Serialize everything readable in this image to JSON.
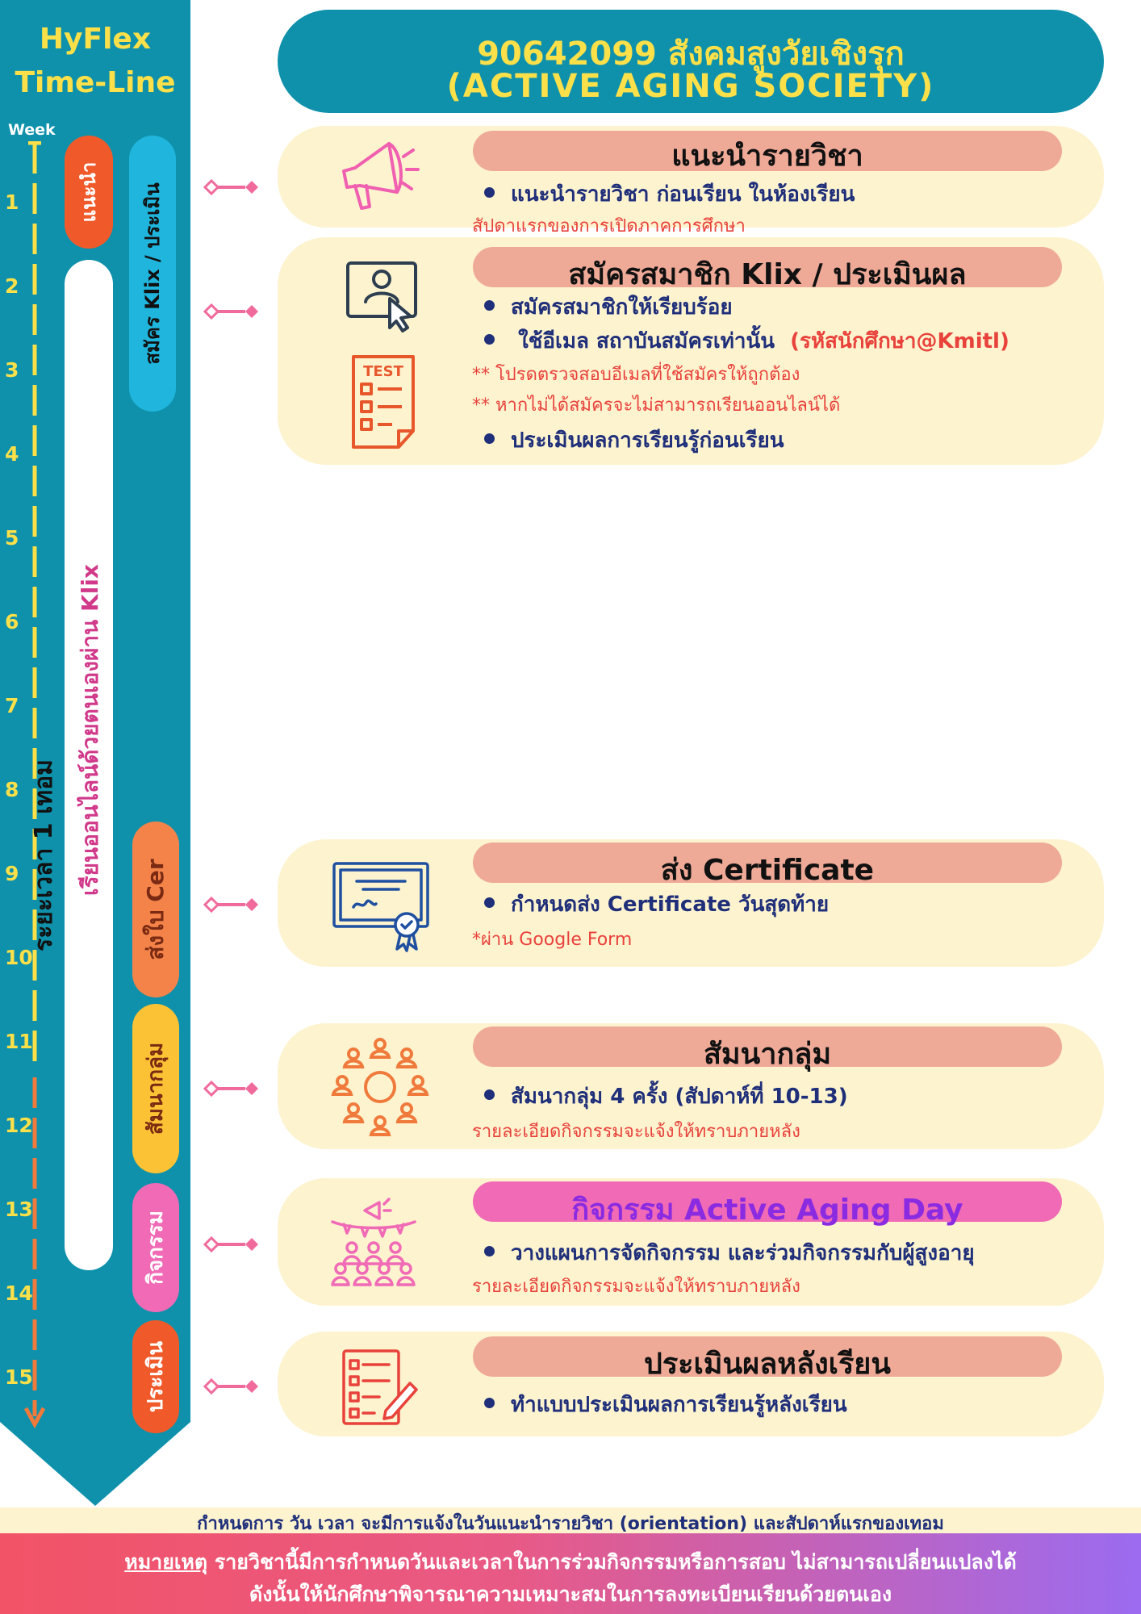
{
  "timeline": {
    "title_line1": "HyFlex",
    "title_line2": "Time-Line",
    "week_label": "Week",
    "weeks": [
      "1",
      "2",
      "3",
      "4",
      "5",
      "6",
      "7",
      "8",
      "9",
      "10",
      "11",
      "12",
      "13",
      "14",
      "15"
    ],
    "duration_label": "ระยะเวลา 1 เทอม",
    "self_study_label": "เรียนออนไลน์ด้วยตนเองผ่าน Klix",
    "pills": {
      "intro": "แนะนำ",
      "register": "สมัคร Klix / ประเมิน",
      "certificate": "ส่งใบ Cer",
      "seminar": "สัมนากลุ่ม",
      "activity": "กิจกรรม",
      "evaluate": "ประเมิน"
    }
  },
  "header": {
    "line1": "90642099 สังคมสูงวัยเชิงรุก",
    "line2": "(ACTIVE AGING SOCIETY)"
  },
  "cards": [
    {
      "title": "แนะนำรายวิชา",
      "bullets": [
        "แนะนำรายวิชา ก่อนเรียน ในห้องเรียน"
      ],
      "notes": [
        "สัปดาแรกของการเปิดภาคการศึกษา"
      ]
    },
    {
      "title": "สมัครสมาชิก Klix / ประเมินผล",
      "bullets": [
        "สมัครสมาชิกให้เรียบร้อย",
        "ใช้อีเมล สถาบันสมัครเท่านั้น",
        "ประเมินผลการเรียนรู้ก่อนเรียน"
      ],
      "email_hint": "(รหัสนักศึกษา@Kmitl)",
      "notes": [
        "** โปรดตรวจสอบอีเมลที่ใช้สมัครให้ถูกต้อง",
        "** หากไม่ได้สมัครจะไม่สามารถเรียนออนไลน์ได้"
      ]
    },
    {
      "title": "ส่ง Certificate",
      "bullets": [
        "กำหนดส่ง Certificate วันสุดท้าย"
      ],
      "notes": [
        "*ผ่าน Google Form"
      ]
    },
    {
      "title": "สัมนากลุ่ม",
      "bullets": [
        "สัมนากลุ่ม 4 ครั้ง (สัปดาห์ที่ 10-13)"
      ],
      "notes": [
        "รายละเอียดกิจกรรมจะแจ้งให้ทราบภายหลัง"
      ]
    },
    {
      "title": "กิจกรรม Active Aging Day",
      "bullets": [
        "วางแผนการจัดกิจกรรม และร่วมกิจกรรมกับผู้สูงอายุ"
      ],
      "notes": [
        "รายละเอียดกิจกรรมจะแจ้งให้ทราบภายหลัง"
      ]
    },
    {
      "title": "ประเมินผลหลังเรียน",
      "bullets": [
        "ทำแบบประเมินผลการเรียนรู้หลังเรียน"
      ],
      "notes": []
    }
  ],
  "icons": [
    "megaphone-icon",
    "id-card-cursor-icon",
    "test-paper-icon",
    "certificate-icon",
    "group-meeting-icon",
    "event-crowd-icon",
    "checklist-icon"
  ],
  "footer": {
    "schedule_note": "กำหนดการ วัน เวลา จะมีการแจ้งในวันแนะนำรายวิชา (orientation) และสัปดาห์แรกของเทอม",
    "remark_label": "หมายเหตุ",
    "remark_line1": " รายวิชานี้มีการกำหนดวันและเวลาในการร่วมกิจกรรมหรือการสอบ ไม่สามารถเปลี่ยนแปลงได้",
    "remark_line2": "ดังนั้นให้นักศึกษาพิจารณาความเหมาะสมในการลงทะเบียนเรียนด้วยตนเอง"
  },
  "colors": {
    "teal": "#0f91ab",
    "yellow": "#fbe04a",
    "cream": "#fdf3cf",
    "salmon": "#efaa97",
    "pink": "#f06ab6",
    "orange": "#f07a3c",
    "navy": "#1f2f7a",
    "red_note": "#e8423b"
  }
}
